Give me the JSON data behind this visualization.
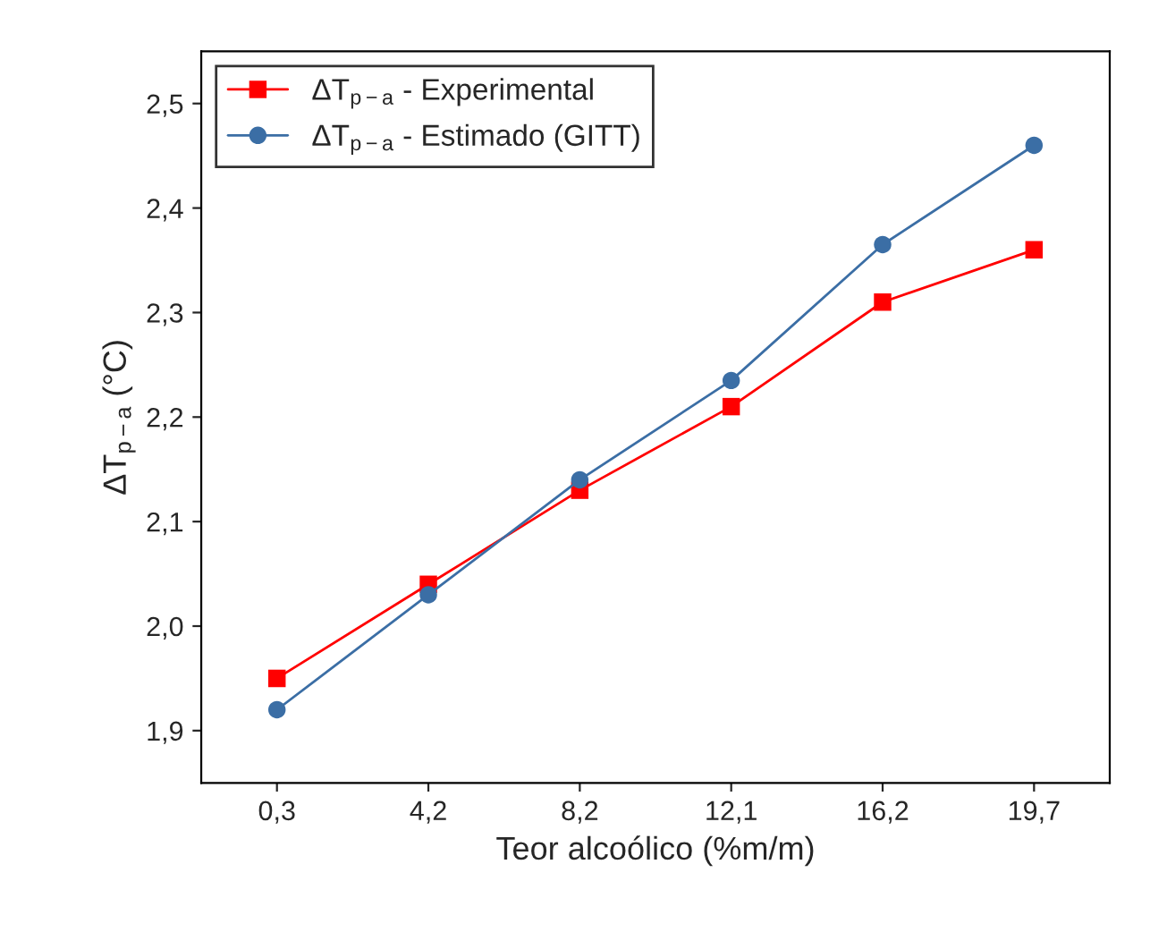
{
  "chart_data": {
    "type": "line",
    "xlabel": "Teor alcoólico (%m/m)",
    "ylabel": "ΔT$_{p−a}$ (°C)",
    "categories": [
      "0,3",
      "4,2",
      "8,2",
      "12,1",
      "16,2",
      "19,7"
    ],
    "series": [
      {
        "name": "ΔT$_{p−a}$ - Experimental",
        "color": "#ff0000",
        "marker": "square",
        "values": [
          1.95,
          2.04,
          2.13,
          2.21,
          2.31,
          2.36
        ]
      },
      {
        "name": "ΔT$_{p−a}$ - Estimado (GITT)",
        "color": "#3b6ea5",
        "marker": "circle",
        "values": [
          1.92,
          2.03,
          2.14,
          2.235,
          2.365,
          2.46
        ]
      }
    ],
    "ylim": [
      1.85,
      2.55
    ],
    "yticks": [
      {
        "value": 1.9,
        "label": "1,9"
      },
      {
        "value": 2.0,
        "label": "2,0"
      },
      {
        "value": 2.1,
        "label": "2,1"
      },
      {
        "value": 2.2,
        "label": "2,2"
      },
      {
        "value": 2.3,
        "label": "2,3"
      },
      {
        "value": 2.4,
        "label": "2,4"
      },
      {
        "value": 2.5,
        "label": "2,5"
      }
    ],
    "legend": "top left",
    "grid": false,
    "line_style": "solid"
  }
}
